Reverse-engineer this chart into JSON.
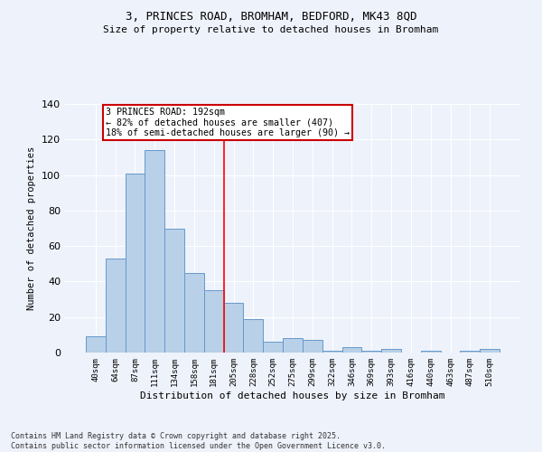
{
  "title1": "3, PRINCES ROAD, BROMHAM, BEDFORD, MK43 8QD",
  "title2": "Size of property relative to detached houses in Bromham",
  "xlabel": "Distribution of detached houses by size in Bromham",
  "ylabel": "Number of detached properties",
  "categories": [
    "40sqm",
    "64sqm",
    "87sqm",
    "111sqm",
    "134sqm",
    "158sqm",
    "181sqm",
    "205sqm",
    "228sqm",
    "252sqm",
    "275sqm",
    "299sqm",
    "322sqm",
    "346sqm",
    "369sqm",
    "393sqm",
    "416sqm",
    "440sqm",
    "463sqm",
    "487sqm",
    "510sqm"
  ],
  "values": [
    9,
    53,
    101,
    114,
    70,
    45,
    35,
    28,
    19,
    6,
    8,
    7,
    1,
    3,
    1,
    2,
    0,
    1,
    0,
    1,
    2
  ],
  "bar_color": "#b8d0e8",
  "bar_edge_color": "#6699cc",
  "background_color": "#eef2fb",
  "red_line_index": 7.5,
  "annotation_text": "3 PRINCES ROAD: 192sqm\n← 82% of detached houses are smaller (407)\n18% of semi-detached houses are larger (90) →",
  "annotation_box_color": "#ffffff",
  "annotation_box_edge": "#cc0000",
  "footnote": "Contains HM Land Registry data © Crown copyright and database right 2025.\nContains public sector information licensed under the Open Government Licence v3.0.",
  "ylim": [
    0,
    140
  ],
  "yticks": [
    0,
    20,
    40,
    60,
    80,
    100,
    120,
    140
  ]
}
